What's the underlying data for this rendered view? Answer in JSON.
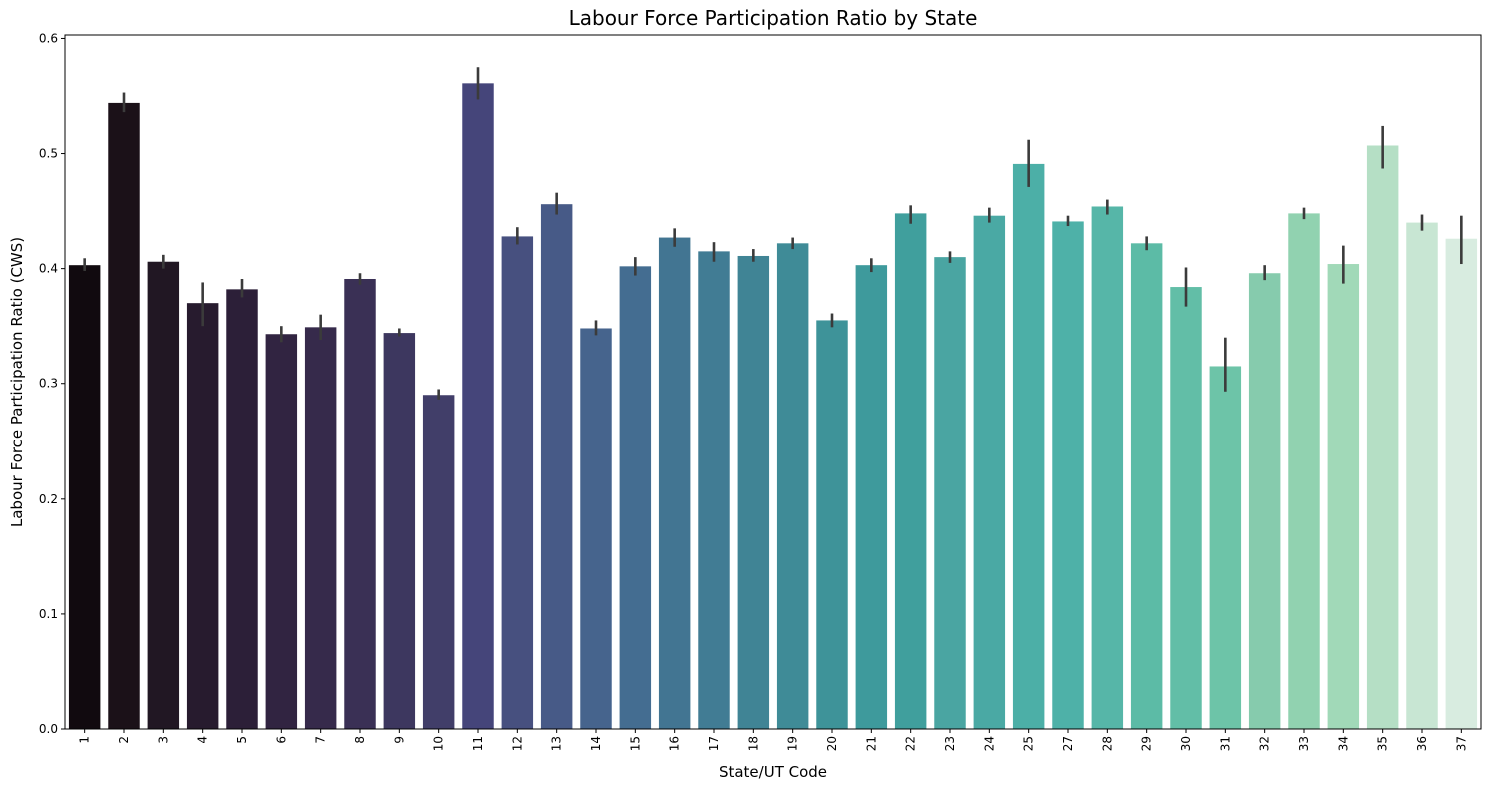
{
  "chart_data": {
    "type": "bar",
    "title": "Labour Force Participation Ratio by State",
    "xlabel": "State/UT Code",
    "ylabel": "Labour Force Participation Ratio (CWS)",
    "ylim": [
      0,
      0.603
    ],
    "yticks": [
      "0.0",
      "0.1",
      "0.2",
      "0.3",
      "0.4",
      "0.5",
      "0.6"
    ],
    "grid": false,
    "legend": "none",
    "categories": [
      "1",
      "2",
      "3",
      "4",
      "5",
      "6",
      "7",
      "8",
      "9",
      "10",
      "11",
      "12",
      "13",
      "14",
      "15",
      "16",
      "17",
      "18",
      "19",
      "20",
      "21",
      "22",
      "23",
      "24",
      "25",
      "27",
      "28",
      "29",
      "30",
      "31",
      "32",
      "33",
      "34",
      "35",
      "36",
      "37"
    ],
    "values": [
      0.403,
      0.544,
      0.406,
      0.37,
      0.382,
      0.343,
      0.349,
      0.391,
      0.344,
      0.29,
      0.561,
      0.428,
      0.456,
      0.348,
      0.402,
      0.427,
      0.415,
      0.411,
      0.422,
      0.355,
      0.403,
      0.448,
      0.41,
      0.446,
      0.491,
      0.441,
      0.454,
      0.422,
      0.384,
      0.315,
      0.396,
      0.448,
      0.404,
      0.507,
      0.44,
      0.426
    ],
    "error_low": [
      0.398,
      0.536,
      0.4,
      0.35,
      0.375,
      0.336,
      0.338,
      0.386,
      0.341,
      0.286,
      0.547,
      0.421,
      0.447,
      0.342,
      0.394,
      0.419,
      0.406,
      0.406,
      0.417,
      0.349,
      0.397,
      0.439,
      0.405,
      0.44,
      0.471,
      0.437,
      0.447,
      0.416,
      0.367,
      0.293,
      0.39,
      0.443,
      0.387,
      0.487,
      0.433,
      0.404
    ],
    "error_high": [
      0.409,
      0.553,
      0.412,
      0.388,
      0.391,
      0.35,
      0.36,
      0.396,
      0.348,
      0.295,
      0.575,
      0.436,
      0.466,
      0.355,
      0.41,
      0.435,
      0.423,
      0.417,
      0.427,
      0.361,
      0.409,
      0.455,
      0.415,
      0.453,
      0.512,
      0.446,
      0.46,
      0.428,
      0.401,
      0.34,
      0.403,
      0.453,
      0.42,
      0.524,
      0.447,
      0.446
    ],
    "colors": [
      "#110a0f",
      "#1b1118",
      "#211723",
      "#271b2e",
      "#2c1f38",
      "#312441",
      "#362a4b",
      "#3a3055",
      "#3d375f",
      "#413e69",
      "#45457a",
      "#47507f",
      "#475a87",
      "#46648d",
      "#446d91",
      "#427592",
      "#417c94",
      "#408495",
      "#3f8b97",
      "#3e9399",
      "#3e9a9c",
      "#409f9d",
      "#4aa5a2",
      "#4aa9a4",
      "#4cafa7",
      "#4eb1a8",
      "#56b6a8",
      "#5cbba6",
      "#62bea7",
      "#6dc4a8",
      "#86cbad",
      "#91d2b0",
      "#a1d9b8",
      "#b5dfc5",
      "#c8e6d3",
      "#d8ece0"
    ],
    "error_color": "#3b3b3b"
  }
}
